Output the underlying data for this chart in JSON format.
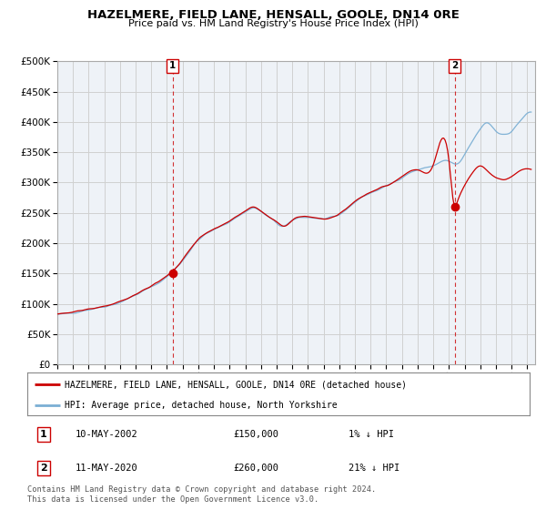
{
  "title": "HAZELMERE, FIELD LANE, HENSALL, GOOLE, DN14 0RE",
  "subtitle": "Price paid vs. HM Land Registry's House Price Index (HPI)",
  "ylim": [
    0,
    500000
  ],
  "yticks": [
    0,
    50000,
    100000,
    150000,
    200000,
    250000,
    300000,
    350000,
    400000,
    450000,
    500000
  ],
  "xlim_start": 1995.0,
  "xlim_end": 2025.5,
  "hpi_color": "#7bafd4",
  "price_color": "#cc0000",
  "marker1_x": 2002.36,
  "marker1_y": 150000,
  "marker2_x": 2020.36,
  "marker2_y": 260000,
  "legend_price_label": "HAZELMERE, FIELD LANE, HENSALL, GOOLE, DN14 0RE (detached house)",
  "legend_hpi_label": "HPI: Average price, detached house, North Yorkshire",
  "bg_color": "#ffffff",
  "plot_bg_color": "#f0f4f8",
  "grid_color": "#d0d0d0",
  "footer": "Contains HM Land Registry data © Crown copyright and database right 2024.\nThis data is licensed under the Open Government Licence v3.0."
}
